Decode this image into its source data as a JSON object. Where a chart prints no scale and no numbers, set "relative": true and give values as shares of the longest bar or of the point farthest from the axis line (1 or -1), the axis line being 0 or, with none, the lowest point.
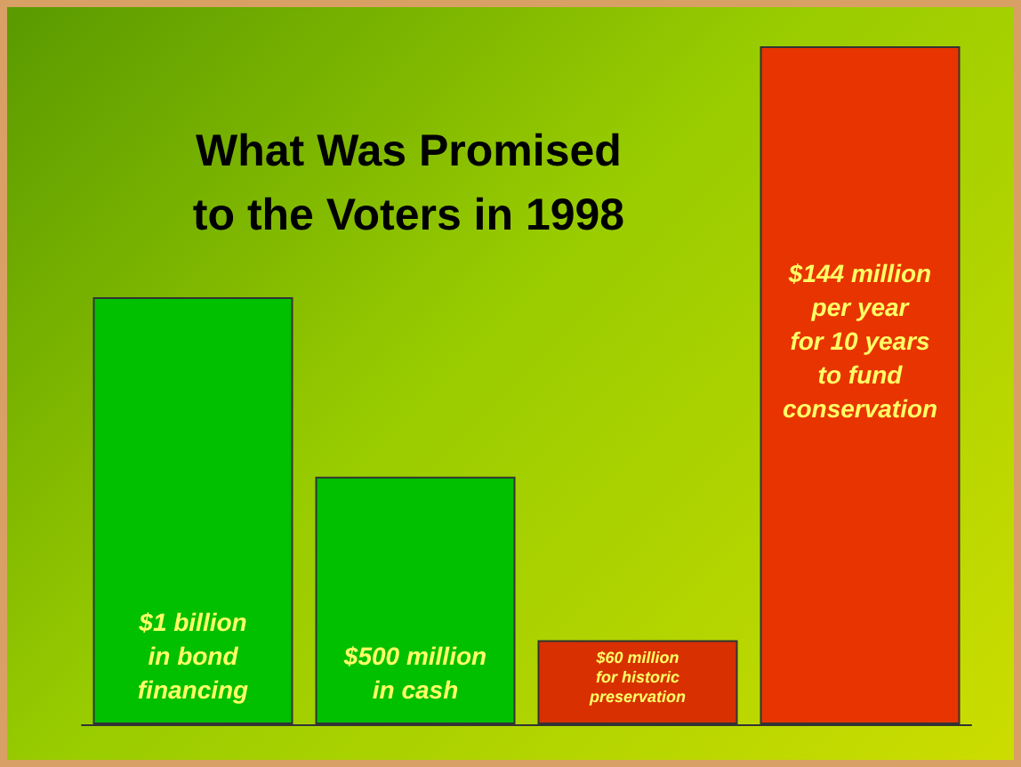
{
  "chart_data": {
    "type": "bar",
    "title": "What Was Promised\nto the Voters in 1998",
    "relative": true,
    "categories": [
      null,
      null,
      null,
      null
    ],
    "values": [
      0.63,
      0.365,
      0.124,
      1
    ],
    "colors": [
      "#00c000",
      "#00c000",
      "#d83000",
      "#e83400"
    ],
    "annotations": [
      "$1 billion\nin bond\nfinancing",
      "$500 million\nin cash",
      "$60 million\nfor historic\npreservation",
      "$144 million\nper year\nfor 10 years\nto fund\nconservation"
    ]
  }
}
